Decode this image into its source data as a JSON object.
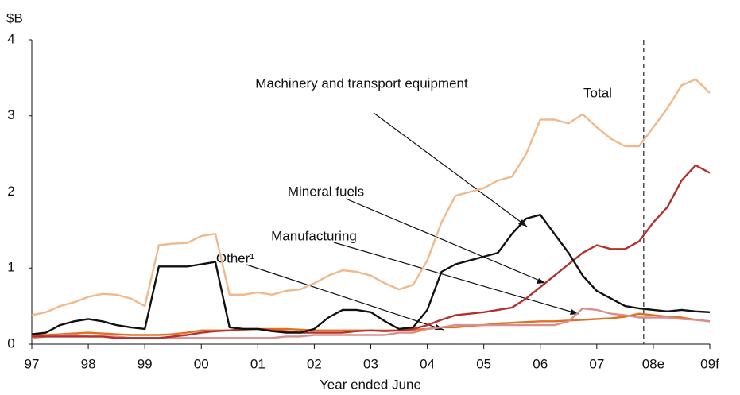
{
  "chart_data": {
    "type": "line",
    "y_unit": "$B",
    "xlabel": "Year ended June",
    "x": [
      1997,
      1997.25,
      1997.5,
      1997.75,
      1998,
      1998.25,
      1998.5,
      1998.75,
      1999,
      1999.25,
      1999.5,
      1999.75,
      2000,
      2000.25,
      2000.5,
      2000.75,
      2001,
      2001.25,
      2001.5,
      2001.75,
      2002,
      2002.25,
      2002.5,
      2002.75,
      2003,
      2003.25,
      2003.5,
      2003.75,
      2004,
      2004.25,
      2004.5,
      2004.75,
      2005,
      2005.25,
      2005.5,
      2005.75,
      2006,
      2006.25,
      2006.5,
      2006.75,
      2007,
      2007.25,
      2007.5,
      2007.75,
      2008,
      2008.25,
      2008.5,
      2008.75,
      2009
    ],
    "series": [
      {
        "name": "Total",
        "color": "#f0b98c",
        "values": [
          0.38,
          0.42,
          0.5,
          0.55,
          0.62,
          0.66,
          0.65,
          0.6,
          0.5,
          1.3,
          1.32,
          1.33,
          1.42,
          1.45,
          0.65,
          0.65,
          0.68,
          0.65,
          0.7,
          0.72,
          0.8,
          0.9,
          0.97,
          0.95,
          0.9,
          0.8,
          0.72,
          0.78,
          1.1,
          1.6,
          1.95,
          2.0,
          2.05,
          2.15,
          2.2,
          2.5,
          2.95,
          2.95,
          2.9,
          3.02,
          2.85,
          2.7,
          2.6,
          2.6,
          2.85,
          3.1,
          3.4,
          3.48,
          3.3
        ]
      },
      {
        "name": "Machinery and transport equipment",
        "color": "#111111",
        "values": [
          0.13,
          0.15,
          0.25,
          0.3,
          0.33,
          0.3,
          0.25,
          0.22,
          0.2,
          1.02,
          1.02,
          1.02,
          1.05,
          1.08,
          0.22,
          0.2,
          0.2,
          0.17,
          0.15,
          0.15,
          0.2,
          0.35,
          0.45,
          0.45,
          0.42,
          0.3,
          0.2,
          0.22,
          0.45,
          0.95,
          1.05,
          1.1,
          1.15,
          1.2,
          1.45,
          1.65,
          1.7,
          1.45,
          1.2,
          0.9,
          0.7,
          0.6,
          0.5,
          0.47,
          0.45,
          0.43,
          0.45,
          0.43,
          0.42
        ]
      },
      {
        "name": "Mineral fuels",
        "color": "#b5302a",
        "values": [
          0.1,
          0.1,
          0.1,
          0.1,
          0.1,
          0.1,
          0.08,
          0.08,
          0.08,
          0.08,
          0.1,
          0.12,
          0.15,
          0.17,
          0.18,
          0.2,
          0.2,
          0.18,
          0.17,
          0.15,
          0.15,
          0.15,
          0.15,
          0.17,
          0.18,
          0.17,
          0.18,
          0.2,
          0.25,
          0.32,
          0.38,
          0.4,
          0.42,
          0.45,
          0.48,
          0.6,
          0.75,
          0.9,
          1.05,
          1.2,
          1.3,
          1.25,
          1.25,
          1.35,
          1.6,
          1.8,
          2.15,
          2.35,
          2.25
        ]
      },
      {
        "name": "Manufacturing",
        "color": "#d98d8d",
        "values": [
          0.08,
          0.1,
          0.12,
          0.12,
          0.1,
          0.1,
          0.1,
          0.08,
          0.08,
          0.08,
          0.08,
          0.08,
          0.08,
          0.08,
          0.08,
          0.08,
          0.08,
          0.08,
          0.1,
          0.1,
          0.12,
          0.12,
          0.12,
          0.12,
          0.12,
          0.12,
          0.15,
          0.15,
          0.2,
          0.22,
          0.25,
          0.25,
          0.25,
          0.25,
          0.25,
          0.25,
          0.25,
          0.25,
          0.3,
          0.47,
          0.45,
          0.4,
          0.38,
          0.35,
          0.35,
          0.35,
          0.33,
          0.32,
          0.3
        ]
      },
      {
        "name": "Other¹",
        "color": "#e07020",
        "values": [
          0.12,
          0.12,
          0.13,
          0.14,
          0.15,
          0.14,
          0.13,
          0.12,
          0.12,
          0.12,
          0.13,
          0.15,
          0.18,
          0.18,
          0.18,
          0.19,
          0.2,
          0.2,
          0.2,
          0.19,
          0.18,
          0.18,
          0.18,
          0.18,
          0.18,
          0.18,
          0.18,
          0.19,
          0.2,
          0.22,
          0.22,
          0.24,
          0.25,
          0.27,
          0.28,
          0.29,
          0.3,
          0.3,
          0.31,
          0.32,
          0.33,
          0.34,
          0.36,
          0.4,
          0.38,
          0.36,
          0.35,
          0.32,
          0.3
        ]
      }
    ],
    "forecast_divider_x": 2007.83,
    "xlim": [
      1997,
      2009
    ],
    "xticks": [
      {
        "value": 1997,
        "label": "97"
      },
      {
        "value": 1998,
        "label": "98"
      },
      {
        "value": 1999,
        "label": "99"
      },
      {
        "value": 2000,
        "label": "00"
      },
      {
        "value": 2001,
        "label": "01"
      },
      {
        "value": 2002,
        "label": "02"
      },
      {
        "value": 2003,
        "label": "03"
      },
      {
        "value": 2004,
        "label": "04"
      },
      {
        "value": 2005,
        "label": "05"
      },
      {
        "value": 2006,
        "label": "06"
      },
      {
        "value": 2007,
        "label": "07"
      },
      {
        "value": 2008,
        "label": "08e"
      },
      {
        "value": 2009,
        "label": "09f"
      }
    ],
    "ylim": [
      0,
      4
    ],
    "yticks": [
      0,
      1,
      2,
      3,
      4
    ],
    "grid": false
  }
}
